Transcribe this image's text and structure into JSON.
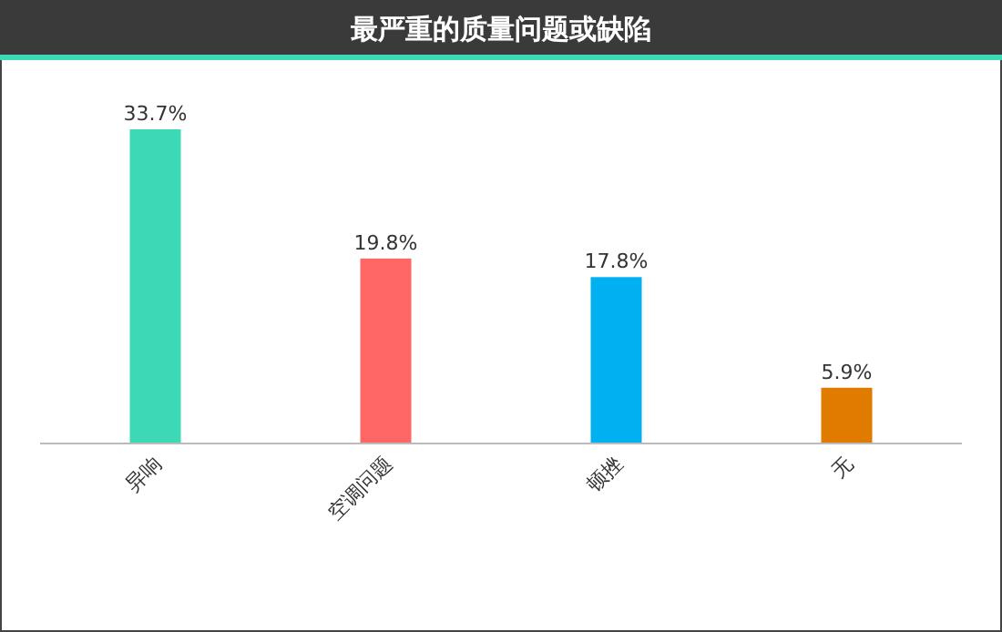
{
  "chart_data": {
    "type": "bar",
    "title": "最严重的质量问题或缺陷",
    "categories": [
      "异响",
      "空调问题",
      "顿挫",
      "无"
    ],
    "values": [
      33.7,
      19.8,
      17.8,
      5.9
    ],
    "colors": [
      "#3dd9b6",
      "#ff6666",
      "#00b0f0",
      "#e07b00"
    ],
    "value_labels": [
      "33.7%",
      "19.8%",
      "17.8%",
      "5.9%"
    ]
  }
}
